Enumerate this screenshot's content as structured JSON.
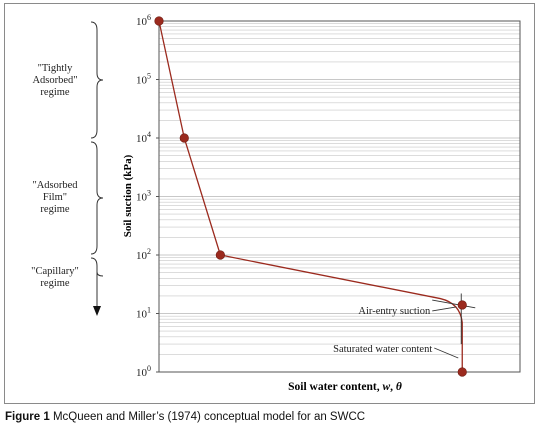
{
  "colors": {
    "series": "#9b2a1e",
    "grid": "#c8c8c8",
    "axis": "#555555"
  },
  "caption": {
    "prefix": "Figure 1",
    "text": "McQueen and Miller’s (1974) conceptual model for an SWCC"
  },
  "regimes": [
    {
      "label": "\"Tightly\nAdsorbed\"\nregime"
    },
    {
      "label": "\"Adsorbed\nFilm\"\nregime"
    },
    {
      "label": "\"Capillary\"\nregime"
    }
  ],
  "chart_data": {
    "type": "line",
    "xlabel": "Soil water content, w, θ",
    "ylabel": "Soil suction (kPa)",
    "yscale": "log",
    "ylim": [
      1,
      1000000
    ],
    "grid": true,
    "y_ticks": [
      {
        "base": "10",
        "exp": "0",
        "value": 1
      },
      {
        "base": "10",
        "exp": "1",
        "value": 10
      },
      {
        "base": "10",
        "exp": "2",
        "value": 100
      },
      {
        "base": "10",
        "exp": "3",
        "value": 1000
      },
      {
        "base": "10",
        "exp": "4",
        "value": 10000
      },
      {
        "base": "10",
        "exp": "5",
        "value": 100000
      },
      {
        "base": "10",
        "exp": "6",
        "value": 1000000
      }
    ],
    "series": [
      {
        "points": [
          {
            "x": 0.0,
            "y": 1000000
          },
          {
            "x": 0.07,
            "y": 10000
          },
          {
            "x": 0.17,
            "y": 100
          },
          {
            "x": 0.84,
            "y": 14
          },
          {
            "x": 0.84,
            "y": 1
          }
        ]
      }
    ],
    "annotations": [
      {
        "text": "Air-entry suction",
        "x": 0.84,
        "y": 14
      },
      {
        "text": "Saturated water content",
        "x": 0.84,
        "y": 1
      }
    ]
  }
}
